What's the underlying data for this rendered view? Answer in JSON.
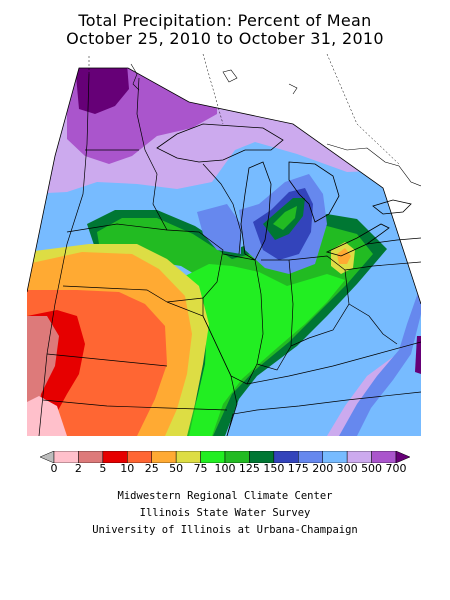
{
  "header": {
    "title_line1": "Total Precipitation: Percent of Mean",
    "title_line2": "October 25, 2010 to October 31, 2010"
  },
  "legend": {
    "labels": [
      "0",
      "2",
      "5",
      "10",
      "25",
      "50",
      "75",
      "100",
      "125",
      "150",
      "175",
      "200",
      "300",
      "500",
      "700"
    ],
    "colors": [
      "#bdbdbd",
      "#ffc0cb",
      "#dd7a7a",
      "#e60000",
      "#ff6633",
      "#ffaa33",
      "#dddd44",
      "#22ee22",
      "#22bb22",
      "#007733",
      "#3344bb",
      "#6688ee",
      "#77bbff",
      "#ccaaee",
      "#aa55cc",
      "#660077"
    ]
  },
  "credits": {
    "line1": "Midwestern Regional Climate Center",
    "line2": "Illinois State Water Survey",
    "line3": "University of Illinois at Urbana-Champaign"
  },
  "map": {
    "region": "Midwestern United States",
    "colors": {
      "very_dry_pink": "#ffc0cb",
      "dry_rose": "#dd7a7a",
      "dry_red": "#e60000",
      "dry_orange": "#ff6633",
      "light_orange": "#ffaa33",
      "yellow_green": "#dddd44",
      "green": "#22ee22",
      "mid_green": "#22bb22",
      "dark_green": "#007733",
      "blue": "#3344bb",
      "mid_blue": "#6688ee",
      "light_blue": "#77bbff",
      "lavender": "#ccaaee",
      "purple": "#aa55cc",
      "dark_purple": "#660077"
    }
  }
}
